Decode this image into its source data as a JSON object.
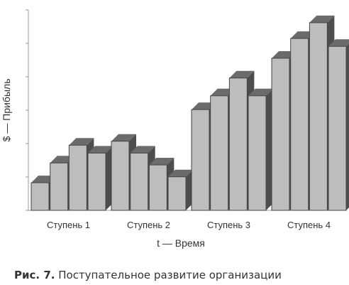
{
  "chart_data": {
    "type": "bar",
    "xlabel": "t — Время",
    "ylabel": "$ — Прибыль",
    "groups": [
      {
        "label": "Ступень 1",
        "values": [
          14,
          24,
          33,
          29
        ]
      },
      {
        "label": "Ступень 2",
        "values": [
          35,
          29,
          23,
          17
        ]
      },
      {
        "label": "Ступень 3",
        "values": [
          51,
          58,
          67,
          58
        ]
      },
      {
        "label": "Ступень 4",
        "values": [
          77,
          87,
          95,
          83
        ]
      }
    ],
    "ylim": [
      0,
      100
    ],
    "gridlines": false,
    "bar_color": "#bdbdbd"
  },
  "caption": {
    "label": "Рис. 7.",
    "text": "Поступательное развитие организации"
  }
}
